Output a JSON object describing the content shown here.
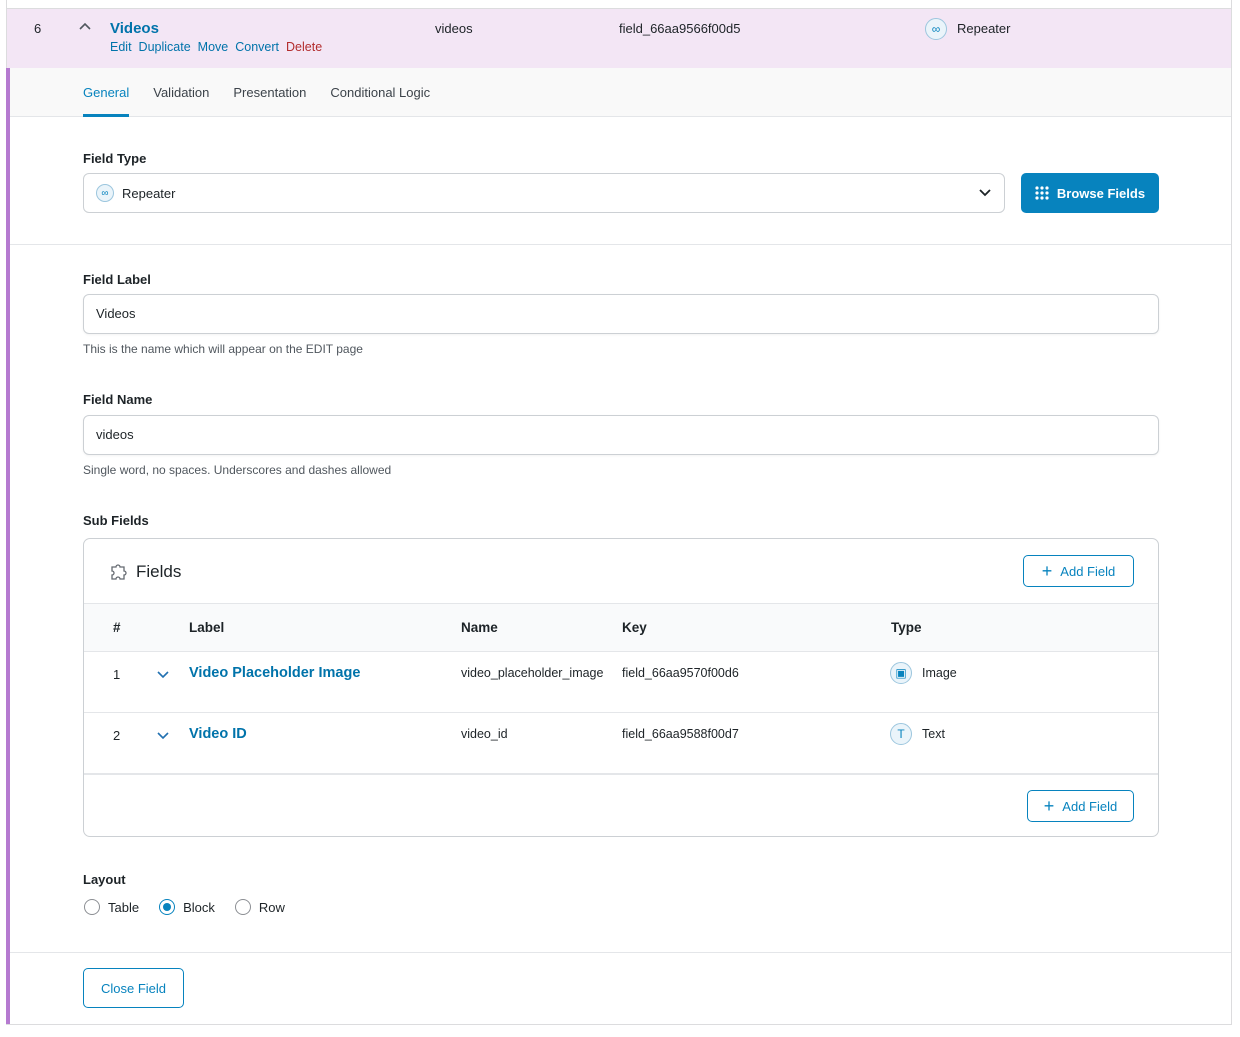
{
  "field_row": {
    "order": 6,
    "label": "Videos",
    "actions": [
      "Edit",
      "Duplicate",
      "Move",
      "Convert",
      "Delete"
    ],
    "name": "videos",
    "key": "field_66aa9566f00d5",
    "type": "Repeater"
  },
  "tabs": {
    "items": [
      "General",
      "Validation",
      "Presentation",
      "Conditional Logic"
    ],
    "active": "General"
  },
  "field_type": {
    "label": "Field Type",
    "value": "Repeater",
    "button": "Browse Fields"
  },
  "field_label": {
    "label": "Field Label",
    "value": "Videos",
    "help": "This is the name which will appear on the EDIT page"
  },
  "field_name": {
    "label": "Field Name",
    "value": "videos",
    "help": "Single word, no spaces. Underscores and dashes allowed"
  },
  "sub_fields": {
    "label": "Sub Fields",
    "title": "Fields",
    "add_button": "Add Field",
    "columns": [
      "#",
      "Label",
      "Name",
      "Key",
      "Type"
    ],
    "rows": [
      {
        "order": 1,
        "label": "Video Placeholder Image",
        "name": "video_placeholder_image",
        "key": "field_66aa9570f00d6",
        "type": "Image"
      },
      {
        "order": 2,
        "label": "Video ID",
        "name": "video_id",
        "key": "field_66aa9588f00d7",
        "type": "Text"
      }
    ],
    "footer_button": "Add Field"
  },
  "layout": {
    "label": "Layout",
    "options": [
      "Table",
      "Block",
      "Row"
    ],
    "selected": "Block"
  },
  "close_button": "Close Field"
}
